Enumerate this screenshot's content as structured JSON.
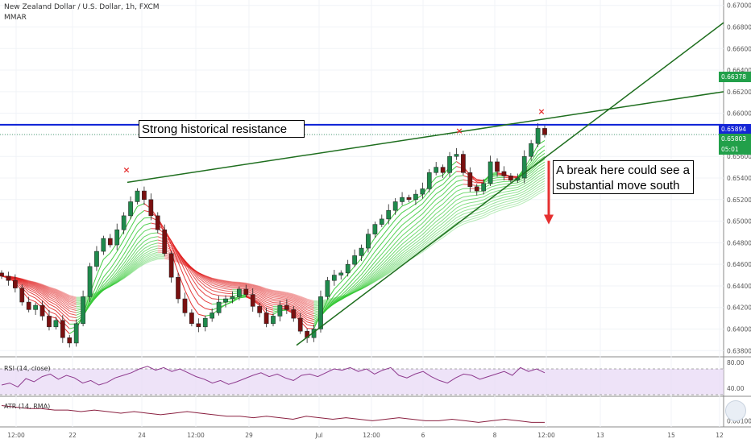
{
  "header": {
    "title": "New Zealand Dollar / U.S. Dollar, 1h, FXCM",
    "indicator": "MMAR"
  },
  "annotations": {
    "resistance_label": "Strong historical resistance",
    "break_label_line1": "A break here could see a",
    "break_label_line2": "substantial move south"
  },
  "price_labels": {
    "level_high": "0.66378",
    "resistance": "0.65894",
    "current_price": "0.65803",
    "countdown": "05:01"
  },
  "colors": {
    "resistance_line": "#0a1fd6",
    "trendline": "#1e6e1e",
    "ribbon_bull": "#32c832",
    "ribbon_bear": "#e02020",
    "candle_up": "#1f8a4c",
    "candle_down": "#7a1010",
    "arrow": "#e53030",
    "marker": "#e53030",
    "rsi_line": "#8e3a8e",
    "rsi_band": "#e7d7f5",
    "atr_line": "#8a2040",
    "label_green": "#22a04a",
    "label_blue": "#1526d6"
  },
  "chart_data": [
    {
      "type": "line",
      "panel": "price",
      "title": "New Zealand Dollar / U.S. Dollar, 1h, FXCM",
      "y_ticks": [
        "0.67000",
        "0.66800",
        "0.66600",
        "0.66400",
        "0.66200",
        "0.66000",
        "0.65800",
        "0.65600",
        "0.65400",
        "0.65200",
        "0.65000",
        "0.64800",
        "0.64600",
        "0.64400",
        "0.64200",
        "0.64000",
        "0.63800"
      ],
      "ylim": [
        0.6375,
        0.6705
      ],
      "x_ticks": [
        "12:00",
        "22",
        "24",
        "12:00",
        "29",
        "Jul",
        "12:00",
        "6",
        "8",
        "12:00",
        "13",
        "15",
        "12"
      ],
      "series": [
        {
          "values": [
            0.6449,
            0.6445,
            0.6438,
            0.6425,
            0.6418,
            0.6422,
            0.6412,
            0.6402,
            0.6408,
            0.6392,
            0.6387,
            0.6405,
            0.643,
            0.6458,
            0.6472,
            0.6484,
            0.6478,
            0.6492,
            0.6505,
            0.6518,
            0.6528,
            0.652,
            0.6505,
            0.6492,
            0.647,
            0.6448,
            0.6428,
            0.6415,
            0.6405,
            0.6402,
            0.641,
            0.6415,
            0.6425,
            0.6428,
            0.643,
            0.6437,
            0.6432,
            0.6421,
            0.6415,
            0.6405,
            0.6412,
            0.6422,
            0.6418,
            0.641,
            0.6398,
            0.6392,
            0.64,
            0.643,
            0.6445,
            0.645,
            0.6452,
            0.646,
            0.6468,
            0.6475,
            0.6488,
            0.6497,
            0.6502,
            0.651,
            0.6518,
            0.6522,
            0.652,
            0.6525,
            0.653,
            0.6545,
            0.655,
            0.6545,
            0.656,
            0.6562,
            0.6545,
            0.6532,
            0.6528,
            0.6535,
            0.6555,
            0.6546,
            0.6542,
            0.6538,
            0.654,
            0.656,
            0.6572,
            0.6586,
            0.658
          ]
        }
      ],
      "horizontal_lines": [
        {
          "name": "resistance",
          "value": 0.65894
        },
        {
          "name": "current price",
          "value": 0.65803
        }
      ],
      "trendlines": [
        {
          "from": [
            "24",
            0.6536
          ],
          "to": [
            "end",
            0.662
          ]
        },
        {
          "from": [
            "29",
            0.6385
          ],
          "to": [
            "end",
            0.6684
          ]
        }
      ],
      "markers": [
        {
          "label": "×",
          "at": "24",
          "value": 0.6545
        },
        {
          "label": "×",
          "at": "7",
          "value": 0.6581
        },
        {
          "label": "×",
          "at": "9",
          "value": 0.6599
        }
      ],
      "grid": true
    },
    {
      "type": "line",
      "panel": "rsi",
      "title": "RSI (14, close)",
      "y_ticks": [
        "80.00",
        "40.00"
      ],
      "ylim": [
        30,
        85
      ],
      "band": [
        30,
        70
      ],
      "values": [
        45,
        48,
        42,
        55,
        50,
        58,
        62,
        54,
        60,
        56,
        48,
        52,
        45,
        49,
        56,
        60,
        64,
        70,
        74,
        68,
        72,
        66,
        70,
        64,
        58,
        54,
        48,
        52,
        46,
        50,
        55,
        60,
        64,
        58,
        62,
        56,
        52,
        60,
        62,
        58,
        64,
        70,
        68,
        72,
        66,
        70,
        62,
        68,
        72,
        60,
        56,
        62,
        66,
        58,
        52,
        48,
        56,
        62,
        60,
        54,
        58,
        62,
        66,
        60,
        72,
        66,
        70,
        64
      ]
    },
    {
      "type": "line",
      "panel": "atr",
      "title": "ATR (14, RMA)",
      "y_ticks": [
        "0.00100"
      ],
      "ylim": [
        0.0006,
        0.0025
      ],
      "values": [
        0.002,
        0.0019,
        0.0018,
        0.0018,
        0.0017,
        0.0017,
        0.0016,
        0.0017,
        0.0016,
        0.0015,
        0.0016,
        0.0015,
        0.0014,
        0.0015,
        0.0016,
        0.0015,
        0.0014,
        0.0013,
        0.0013,
        0.0012,
        0.0013,
        0.0012,
        0.0011,
        0.0013,
        0.0012,
        0.0011,
        0.0012,
        0.0011,
        0.001,
        0.0011,
        0.0012,
        0.0011,
        0.001,
        0.001,
        0.0011,
        0.001,
        0.0009,
        0.001,
        0.0011,
        0.001,
        0.0009,
        0.0009
      ]
    }
  ]
}
